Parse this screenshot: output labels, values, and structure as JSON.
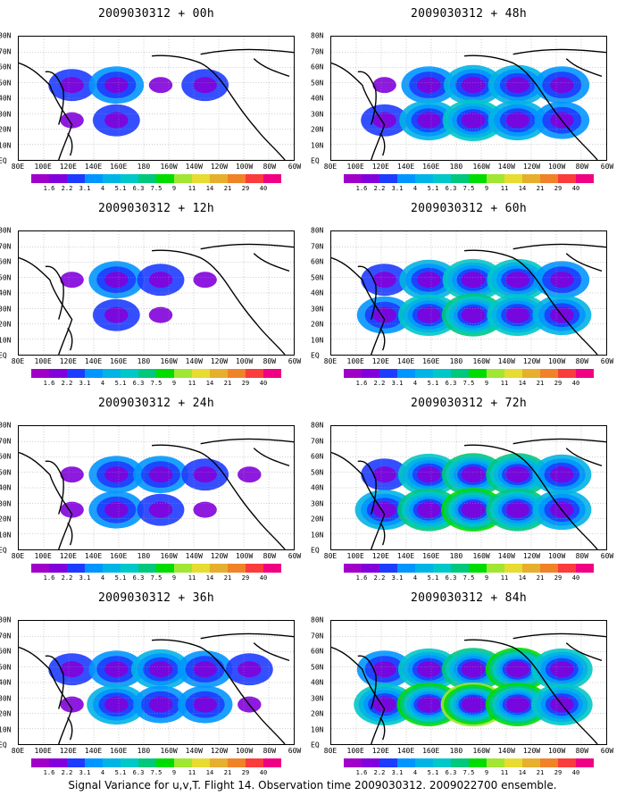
{
  "panels": [
    {
      "title": "2009030312 + 00h",
      "cells": [
        [
          2,
          3,
          1,
          2,
          0
        ],
        [
          1,
          2,
          0,
          0,
          0
        ]
      ]
    },
    {
      "title": "2009030312 + 48h",
      "cells": [
        [
          1,
          3,
          4,
          4,
          3
        ],
        [
          2,
          4,
          5,
          4,
          3
        ]
      ]
    },
    {
      "title": "2009030312 + 12h",
      "cells": [
        [
          1,
          3,
          2,
          1,
          0
        ],
        [
          0,
          2,
          1,
          0,
          0
        ]
      ]
    },
    {
      "title": "2009030312 + 60h",
      "cells": [
        [
          2,
          4,
          5,
          5,
          3
        ],
        [
          3,
          5,
          6,
          5,
          4
        ]
      ]
    },
    {
      "title": "2009030312 + 24h",
      "cells": [
        [
          1,
          3,
          3,
          2,
          1
        ],
        [
          1,
          3,
          2,
          1,
          0
        ]
      ]
    },
    {
      "title": "2009030312 + 72h",
      "cells": [
        [
          2,
          5,
          6,
          6,
          4
        ],
        [
          4,
          6,
          7,
          6,
          4
        ]
      ]
    },
    {
      "title": "2009030312 + 36h",
      "cells": [
        [
          2,
          3,
          4,
          3,
          2
        ],
        [
          1,
          4,
          3,
          3,
          1
        ]
      ]
    },
    {
      "title": "2009030312 + 84h",
      "cells": [
        [
          3,
          5,
          6,
          7,
          5
        ],
        [
          5,
          7,
          8,
          7,
          5
        ]
      ]
    }
  ],
  "lat_labels": [
    "80N",
    "70N",
    "60N",
    "50N",
    "40N",
    "30N",
    "20N",
    "10N",
    "EQ"
  ],
  "lon_labels": [
    "80E",
    "100E",
    "120E",
    "140E",
    "160E",
    "180",
    "160W",
    "140W",
    "120W",
    "100W",
    "80W",
    "60W"
  ],
  "colorbar": {
    "labels": [
      "1.6",
      "2.2",
      "3.1",
      "4",
      "5.1",
      "6.3",
      "7.5",
      "9",
      "11",
      "14",
      "21",
      "29",
      "40"
    ],
    "colors": [
      "#a000c8",
      "#8200dc",
      "#1e3cff",
      "#0096ff",
      "#00b4e6",
      "#00c8c8",
      "#00c87c",
      "#00dc00",
      "#a0e632",
      "#e6dc32",
      "#e6af2d",
      "#f08228",
      "#fa3c3c",
      "#f00082"
    ]
  },
  "caption": "Signal Variance for u,v,T. Flight 14. Observation time 2009030312. 2009022700 ensemble."
}
